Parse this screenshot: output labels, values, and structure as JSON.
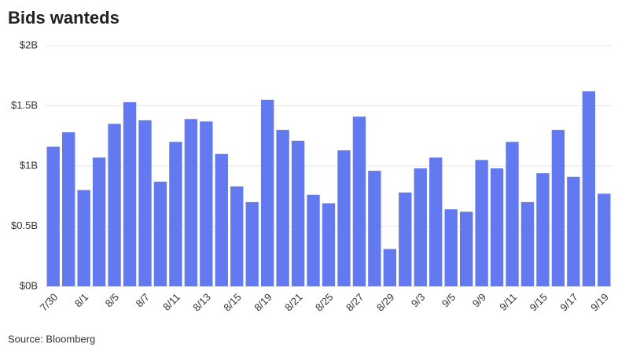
{
  "chart_data": {
    "type": "bar",
    "title": "Bids wanteds",
    "source": "Source: Bloomberg",
    "categories": [
      "7/30",
      null,
      "8/1",
      null,
      "8/5",
      null,
      "8/7",
      null,
      "8/11",
      null,
      "8/13",
      null,
      "8/15",
      null,
      "8/19",
      null,
      "8/21",
      null,
      "8/25",
      null,
      "8/27",
      null,
      "8/29",
      null,
      "9/3",
      null,
      "9/5",
      null,
      "9/9",
      null,
      "9/11",
      null,
      "9/15",
      null,
      "9/17",
      null,
      "9/19"
    ],
    "values": [
      1.16,
      1.28,
      0.8,
      1.07,
      1.35,
      1.53,
      1.38,
      0.87,
      1.2,
      1.39,
      1.37,
      1.1,
      0.83,
      0.7,
      1.55,
      1.3,
      1.21,
      0.76,
      0.69,
      1.13,
      1.41,
      0.96,
      0.31,
      0.78,
      0.98,
      1.07,
      0.64,
      0.62,
      1.05,
      0.98,
      1.2,
      0.7,
      0.94,
      1.3,
      0.91,
      1.62,
      0.77
    ],
    "color": "#6279f0",
    "ylim": [
      0,
      2
    ],
    "yticks": [
      {
        "value": 0,
        "label": "$0B"
      },
      {
        "value": 0.5,
        "label": "$0.5B"
      },
      {
        "value": 1,
        "label": "$1B"
      },
      {
        "value": 1.5,
        "label": "$1.5B"
      },
      {
        "value": 2,
        "label": "$2B"
      }
    ],
    "grid": true
  }
}
